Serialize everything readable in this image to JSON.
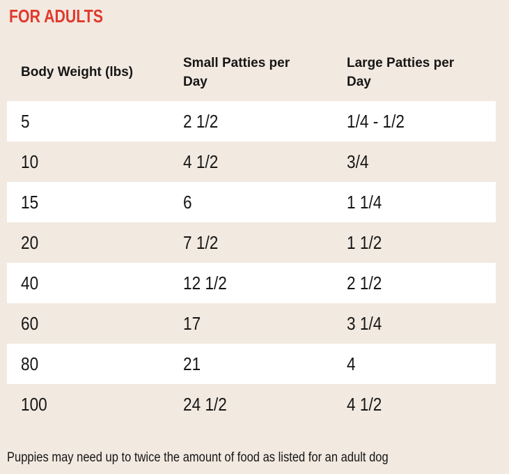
{
  "title": "FOR ADULTS",
  "colors": {
    "background": "#f2e9e0",
    "row_alt": "#ffffff",
    "title": "#e0392e",
    "text": "#161616"
  },
  "table": {
    "headers": [
      "Body Weight (lbs)",
      "Small Patties per Day",
      "Large Patties per Day"
    ],
    "rows": [
      [
        "5",
        "2 1/2",
        "1/4 - 1/2"
      ],
      [
        "10",
        "4 1/2",
        "3/4"
      ],
      [
        "15",
        "6",
        "1 1/4"
      ],
      [
        "20",
        "7 1/2",
        "1 1/2"
      ],
      [
        "40",
        "12 1/2",
        "2 1/2"
      ],
      [
        "60",
        "17",
        "3 1/4"
      ],
      [
        "80",
        "21",
        "4"
      ],
      [
        "100",
        "24 1/2",
        "4 1/2"
      ]
    ]
  },
  "footnote": "Puppies may need up to twice the amount of food as listed for an adult dog"
}
